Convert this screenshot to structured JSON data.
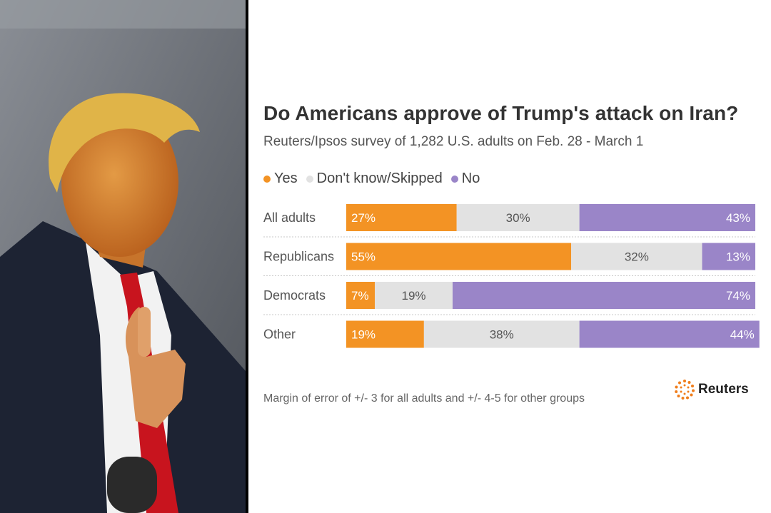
{
  "chart_data": {
    "type": "bar",
    "stacked": true,
    "orientation": "horizontal",
    "title": "Do Americans approve of Trump's attack on Iran?",
    "subtitle": "Reuters/Ipsos survey of 1,282 U.S. adults on Feb. 28 - March 1",
    "categories": [
      "All adults",
      "Republicans",
      "Democrats",
      "Other"
    ],
    "series": [
      {
        "name": "Yes",
        "color": "#f39324",
        "values": [
          27,
          55,
          7,
          19
        ],
        "labels": [
          "27%",
          "55%",
          "7%",
          "19%"
        ]
      },
      {
        "name": "Don't know/Skipped",
        "color": "#e2e2e2",
        "values": [
          30,
          32,
          19,
          38
        ],
        "labels": [
          "30%",
          "32%",
          "19%",
          "38%"
        ]
      },
      {
        "name": "No",
        "color": "#9a85c8",
        "values": [
          43,
          13,
          74,
          44
        ],
        "labels": [
          "43%",
          "13%",
          "74%",
          "44%"
        ]
      }
    ],
    "xlim": [
      0,
      100
    ],
    "legend_position": "top-left",
    "footnote": "Margin of error of +/- 3 for all adults and +/- 4-5 for other groups"
  },
  "brand": {
    "name": "Reuters",
    "icon": "reuters-logo-icon"
  },
  "photo": {
    "icon": "portrait-photo"
  }
}
